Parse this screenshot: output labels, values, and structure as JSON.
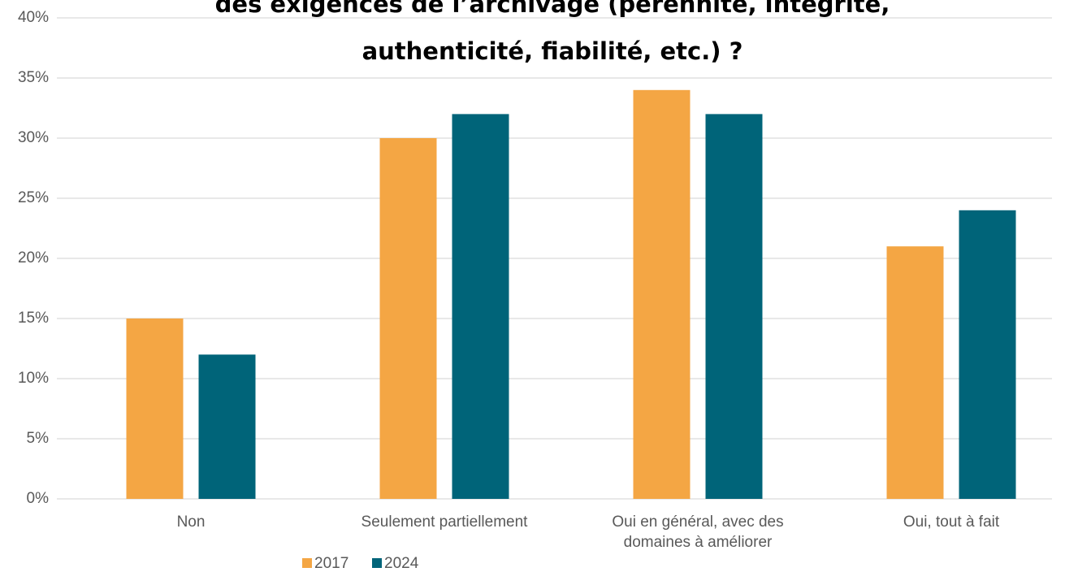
{
  "chart_data": {
    "type": "bar",
    "title": [
      "des exigences de l’archivage (pérennité, intégrité,",
      "authenticité, fiabilité, etc.) ?"
    ],
    "categories": [
      "Non",
      "Seulement partiellement",
      "Oui en général, avec des domaines à améliorer",
      "Oui, tout à fait"
    ],
    "series": [
      {
        "name": "2017",
        "color": "#f4a644",
        "values": [
          15,
          30,
          34,
          21
        ]
      },
      {
        "name": "2024",
        "color": "#006479",
        "values": [
          12,
          32,
          32,
          24
        ]
      }
    ],
    "ylim": [
      0,
      40
    ],
    "yticks": [
      {
        "value": 0,
        "label": "0%"
      },
      {
        "value": 5,
        "label": "5%"
      },
      {
        "value": 10,
        "label": "10%"
      },
      {
        "value": 15,
        "label": "15%"
      },
      {
        "value": 20,
        "label": "20%"
      },
      {
        "value": 25,
        "label": "25%"
      },
      {
        "value": 30,
        "label": "30%"
      },
      {
        "value": 35,
        "label": "35%"
      },
      {
        "value": 40,
        "label": "40%"
      }
    ],
    "grid": true
  }
}
